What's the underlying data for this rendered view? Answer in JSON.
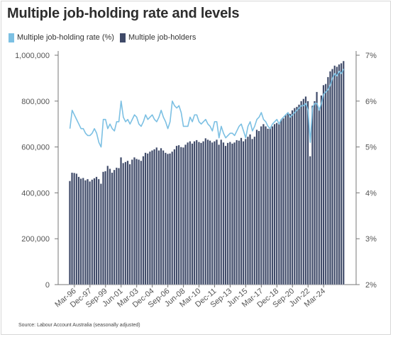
{
  "title": "Multiple job-holding rate and levels",
  "source": "Source: Labour Account Australia (seasonally adjusted)",
  "colors": {
    "bars": "#3f4a68",
    "bar_edge": "#e9ecf2",
    "line": "#7cc0e3",
    "axis": "#777777",
    "text": "#555555",
    "grid_tick": "#bbbbbb"
  },
  "chart_data": {
    "type": "bar+line",
    "title": "Multiple job-holding rate and levels",
    "legend": [
      "Multiple job-holding rate (%)",
      "Multiple job-holders"
    ],
    "legend_position": "top-left",
    "grid": false,
    "x_tick_labels": [
      "Mar-96",
      "Dec-97",
      "Sep-99",
      "Jun-01",
      "Mar-03",
      "Dec-04",
      "Sep-06",
      "Jun-08",
      "Mar-10",
      "Dec-11",
      "Sep-13",
      "Jun-15",
      "Mar-17",
      "Dec-18",
      "Sep-20",
      "Jun-22",
      "Mar-24"
    ],
    "y_left": {
      "lim": [
        0,
        1000000
      ],
      "ticks": [
        "0",
        "200,000",
        "400,000",
        "600,000",
        "800,000",
        "1,000,000"
      ]
    },
    "y_right": {
      "lim": [
        2,
        7
      ],
      "ticks": [
        "2%",
        "3%",
        "4%",
        "5%",
        "6%",
        "7%"
      ]
    },
    "x_start": "Sep-95",
    "x_end": "Jun-24",
    "frequency": "quarterly",
    "series": [
      {
        "name": "Multiple job-holders",
        "type": "bar",
        "axis": "left",
        "values": [
          452000,
          488000,
          487000,
          484000,
          470000,
          462000,
          465000,
          455000,
          460000,
          450000,
          458000,
          464000,
          470000,
          460000,
          440000,
          492000,
          495000,
          518000,
          505000,
          488000,
          500000,
          510000,
          508000,
          555000,
          530000,
          535000,
          540000,
          525000,
          545000,
          555000,
          548000,
          545000,
          540000,
          560000,
          575000,
          572000,
          580000,
          585000,
          590000,
          598000,
          585000,
          595000,
          585000,
          575000,
          570000,
          572000,
          580000,
          590000,
          605000,
          608000,
          600000,
          598000,
          610000,
          620000,
          625000,
          615000,
          625000,
          630000,
          622000,
          618000,
          625000,
          638000,
          632000,
          628000,
          620000,
          625000,
          632000,
          610000,
          632000,
          620000,
          605000,
          618000,
          622000,
          615000,
          620000,
          630000,
          628000,
          640000,
          625000,
          635000,
          645000,
          655000,
          635000,
          645000,
          675000,
          670000,
          690000,
          700000,
          690000,
          680000,
          685000,
          690000,
          700000,
          705000,
          700000,
          720000,
          725000,
          740000,
          750000,
          745000,
          760000,
          770000,
          775000,
          785000,
          800000,
          810000,
          820000,
          800000,
          560000,
          780000,
          800000,
          840000,
          770000,
          825000,
          870000,
          875000,
          905000,
          930000,
          940000,
          955000,
          950000,
          960000,
          965000,
          975000
        ]
      },
      {
        "name": "Multiple job-holding rate (%)",
        "type": "line",
        "axis": "right",
        "values": [
          5.4,
          5.8,
          5.7,
          5.6,
          5.5,
          5.4,
          5.4,
          5.3,
          5.25,
          5.25,
          5.3,
          5.4,
          5.3,
          5.1,
          5.0,
          5.6,
          5.6,
          5.4,
          5.5,
          5.4,
          5.35,
          5.55,
          5.55,
          6.0,
          5.65,
          5.55,
          5.6,
          5.5,
          5.6,
          5.7,
          5.65,
          5.5,
          5.45,
          5.55,
          5.7,
          5.6,
          5.65,
          5.7,
          5.6,
          5.55,
          5.65,
          5.8,
          5.65,
          5.55,
          5.4,
          5.55,
          6.0,
          5.9,
          5.85,
          5.9,
          5.75,
          5.45,
          5.45,
          5.45,
          5.65,
          5.55,
          5.7,
          5.7,
          5.55,
          5.5,
          5.55,
          5.6,
          5.5,
          5.45,
          5.35,
          5.55,
          5.55,
          5.2,
          5.45,
          5.3,
          5.2,
          5.25,
          5.3,
          5.3,
          5.25,
          5.35,
          5.45,
          5.5,
          5.35,
          5.2,
          5.45,
          5.55,
          5.35,
          5.45,
          5.6,
          5.65,
          5.75,
          5.6,
          5.55,
          5.45,
          5.4,
          5.5,
          5.55,
          5.6,
          5.5,
          5.6,
          5.65,
          5.7,
          5.75,
          5.65,
          5.7,
          5.75,
          5.8,
          5.85,
          5.9,
          5.9,
          5.95,
          5.8,
          5.1,
          5.85,
          5.95,
          5.95,
          5.8,
          5.95,
          6.15,
          6.2,
          6.25,
          6.35,
          6.5,
          6.6,
          6.55,
          6.65,
          6.6,
          6.7
        ]
      }
    ]
  }
}
